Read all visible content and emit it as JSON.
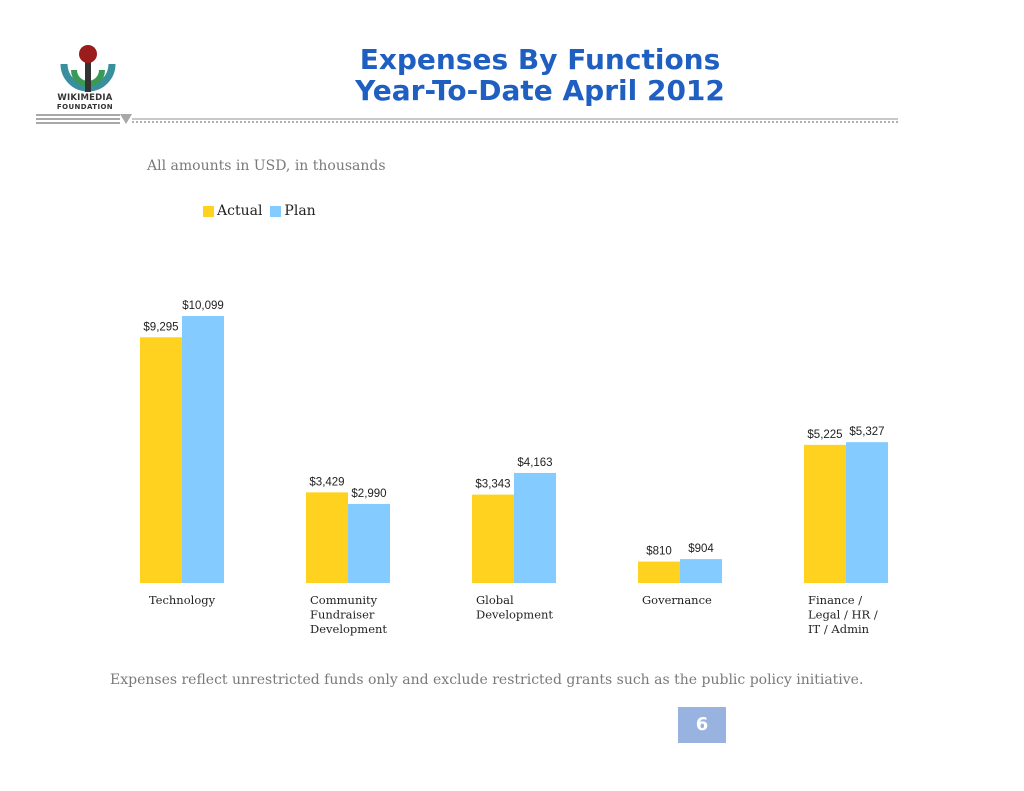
{
  "logo": {
    "line1": "WIKIMEDIA",
    "line2": "FOUNDATION"
  },
  "header": {
    "title_line1": "Expenses By Functions",
    "title_line2": "Year-To-Date April 2012"
  },
  "subtitle": "All amounts in USD, in thousands",
  "footnote": "Expenses reflect unrestricted funds only and exclude restricted grants such as the public policy initiative.",
  "page_number": "6",
  "colors": {
    "actual": "#ffd21f",
    "plan": "#84cbff",
    "title": "#1f5fc2",
    "page_badge": "#98b3e0"
  },
  "chart_data": {
    "type": "bar",
    "categories": [
      [
        "Technology"
      ],
      [
        "Community",
        "Fundraiser",
        "Development"
      ],
      [
        "Global",
        "Development"
      ],
      [
        "Governance"
      ],
      [
        "Finance /",
        "Legal / HR /",
        "IT / Admin"
      ]
    ],
    "series": [
      {
        "name": "Actual",
        "values": [
          9295,
          3429,
          3343,
          810,
          5225
        ],
        "labels": [
          "$9,295",
          "$3,429",
          "$3,343",
          "$810",
          "$5,225"
        ]
      },
      {
        "name": "Plan",
        "values": [
          10099,
          2990,
          4163,
          904,
          5327
        ],
        "labels": [
          "$10,099",
          "$2,990",
          "$4,163",
          "$904",
          "$5,327"
        ]
      }
    ],
    "legend_position": "top-left",
    "grid": false
  }
}
